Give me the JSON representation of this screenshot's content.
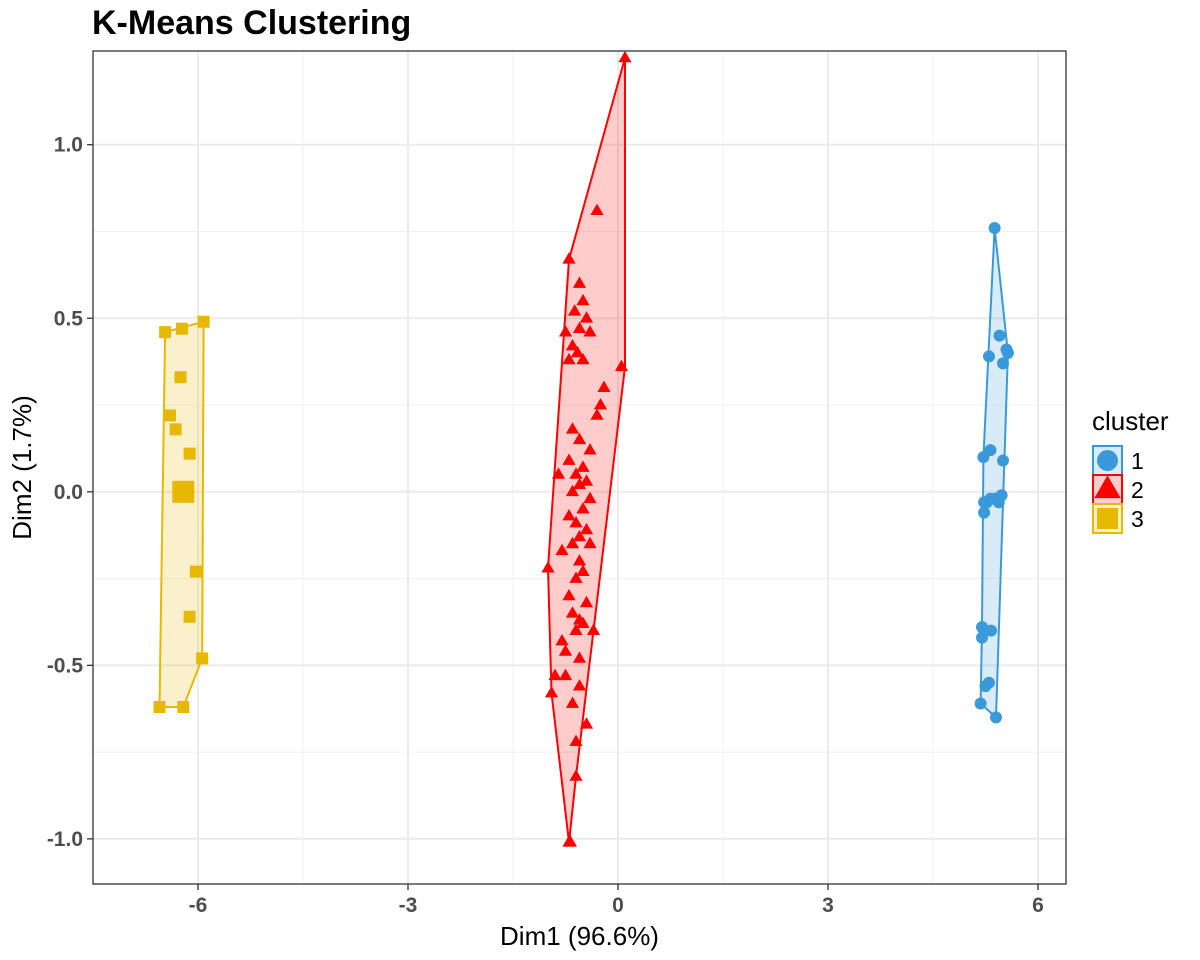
{
  "chart_data": {
    "type": "scatter",
    "title": "K-Means Clustering",
    "xlabel": "Dim1 (96.6%)",
    "ylabel": "Dim2 (1.7%)",
    "xlim": [
      -7.5,
      6.4
    ],
    "ylim": [
      -1.13,
      1.27
    ],
    "x_ticks": [
      -6,
      -3,
      0,
      3,
      6
    ],
    "x_tick_labels": [
      "-6",
      "-3",
      "0",
      "3",
      "6"
    ],
    "y_ticks": [
      -1.0,
      -0.5,
      0.0,
      0.5,
      1.0
    ],
    "y_tick_labels": [
      "-1.0",
      "-0.5",
      "0.0",
      "0.5",
      "1.0"
    ],
    "grid": true,
    "legend": {
      "title": "cluster",
      "placement": "right"
    },
    "series": [
      {
        "name": "1",
        "color": "#3a9ad9",
        "marker": "circle",
        "points": [
          [
            5.38,
            0.76
          ],
          [
            5.45,
            0.45
          ],
          [
            5.55,
            0.41
          ],
          [
            5.57,
            0.4
          ],
          [
            5.3,
            0.39
          ],
          [
            5.5,
            0.37
          ],
          [
            5.32,
            0.12
          ],
          [
            5.22,
            0.1
          ],
          [
            5.5,
            0.09
          ],
          [
            5.23,
            -0.03
          ],
          [
            5.27,
            -0.03
          ],
          [
            5.32,
            -0.02
          ],
          [
            5.38,
            -0.02
          ],
          [
            5.44,
            -0.03
          ],
          [
            5.48,
            -0.01
          ],
          [
            5.23,
            -0.06
          ],
          [
            5.2,
            -0.39
          ],
          [
            5.33,
            -0.4
          ],
          [
            5.2,
            -0.42
          ],
          [
            5.25,
            -0.56
          ],
          [
            5.3,
            -0.55
          ],
          [
            5.18,
            -0.61
          ],
          [
            5.4,
            -0.65
          ]
        ],
        "hull": [
          [
            5.38,
            0.76
          ],
          [
            5.57,
            0.4
          ],
          [
            5.4,
            -0.65
          ],
          [
            5.18,
            -0.61
          ],
          [
            5.2,
            -0.39
          ],
          [
            5.22,
            0.1
          ]
        ]
      },
      {
        "name": "2",
        "color": "#ff0000",
        "marker": "triangle",
        "points": [
          [
            0.1,
            1.25
          ],
          [
            -0.3,
            0.81
          ],
          [
            -0.7,
            0.67
          ],
          [
            -0.55,
            0.6
          ],
          [
            -0.5,
            0.55
          ],
          [
            -0.62,
            0.52
          ],
          [
            -0.45,
            0.5
          ],
          [
            -0.55,
            0.47
          ],
          [
            -0.75,
            0.46
          ],
          [
            -0.4,
            0.46
          ],
          [
            -0.65,
            0.42
          ],
          [
            -0.58,
            0.4
          ],
          [
            -0.5,
            0.38
          ],
          [
            -0.7,
            0.38
          ],
          [
            0.05,
            0.36
          ],
          [
            -0.2,
            0.3
          ],
          [
            -0.25,
            0.25
          ],
          [
            -0.3,
            0.22
          ],
          [
            -0.65,
            0.18
          ],
          [
            -0.55,
            0.15
          ],
          [
            -0.4,
            0.12
          ],
          [
            -0.7,
            0.09
          ],
          [
            -0.5,
            0.07
          ],
          [
            -0.6,
            0.05
          ],
          [
            -0.45,
            0.03
          ],
          [
            -0.85,
            0.05
          ],
          [
            -0.55,
            0.02
          ],
          [
            -0.65,
            0.0
          ],
          [
            -0.4,
            -0.02
          ],
          [
            -0.5,
            -0.05
          ],
          [
            -0.7,
            -0.07
          ],
          [
            -0.6,
            -0.09
          ],
          [
            -0.45,
            -0.11
          ],
          [
            -0.55,
            -0.13
          ],
          [
            -0.65,
            -0.15
          ],
          [
            -0.4,
            -0.15
          ],
          [
            -0.8,
            -0.17
          ],
          [
            -0.55,
            -0.2
          ],
          [
            -1.0,
            -0.22
          ],
          [
            -0.5,
            -0.23
          ],
          [
            -0.6,
            -0.25
          ],
          [
            -0.7,
            -0.3
          ],
          [
            -0.45,
            -0.32
          ],
          [
            -0.65,
            -0.35
          ],
          [
            -0.55,
            -0.37
          ],
          [
            -0.5,
            -0.38
          ],
          [
            -0.6,
            -0.4
          ],
          [
            -0.35,
            -0.4
          ],
          [
            -0.8,
            -0.43
          ],
          [
            -0.75,
            -0.46
          ],
          [
            -0.55,
            -0.48
          ],
          [
            -0.9,
            -0.53
          ],
          [
            -0.75,
            -0.53
          ],
          [
            -0.55,
            -0.56
          ],
          [
            -0.95,
            -0.58
          ],
          [
            -0.65,
            -0.61
          ],
          [
            -0.45,
            -0.67
          ],
          [
            -0.6,
            -0.72
          ],
          [
            -0.6,
            -0.82
          ],
          [
            -0.7,
            -1.01
          ],
          [
            -0.68,
            -1.01
          ]
        ],
        "hull": [
          [
            0.1,
            1.25
          ],
          [
            0.1,
            0.36
          ],
          [
            -0.35,
            -0.4
          ],
          [
            -0.6,
            -0.82
          ],
          [
            -0.7,
            -1.01
          ],
          [
            -0.95,
            -0.58
          ],
          [
            -1.0,
            -0.22
          ],
          [
            -0.7,
            0.67
          ]
        ]
      },
      {
        "name": "3",
        "color": "#e7b800",
        "marker": "square",
        "points": [
          [
            -5.92,
            0.49
          ],
          [
            -6.23,
            0.47
          ],
          [
            -6.47,
            0.46
          ],
          [
            -6.25,
            0.33
          ],
          [
            -6.4,
            0.22
          ],
          [
            -6.32,
            0.18
          ],
          [
            -6.12,
            0.11
          ],
          [
            -6.21,
            0.0
          ],
          [
            -6.03,
            -0.23
          ],
          [
            -6.12,
            -0.36
          ],
          [
            -5.94,
            -0.48
          ],
          [
            -6.55,
            -0.62
          ],
          [
            -6.21,
            -0.62
          ]
        ],
        "centroid": [
          -6.21,
          0.0
        ],
        "hull": [
          [
            -5.92,
            0.49
          ],
          [
            -5.94,
            -0.48
          ],
          [
            -6.21,
            -0.62
          ],
          [
            -6.55,
            -0.62
          ],
          [
            -6.47,
            0.46
          ]
        ]
      }
    ]
  }
}
